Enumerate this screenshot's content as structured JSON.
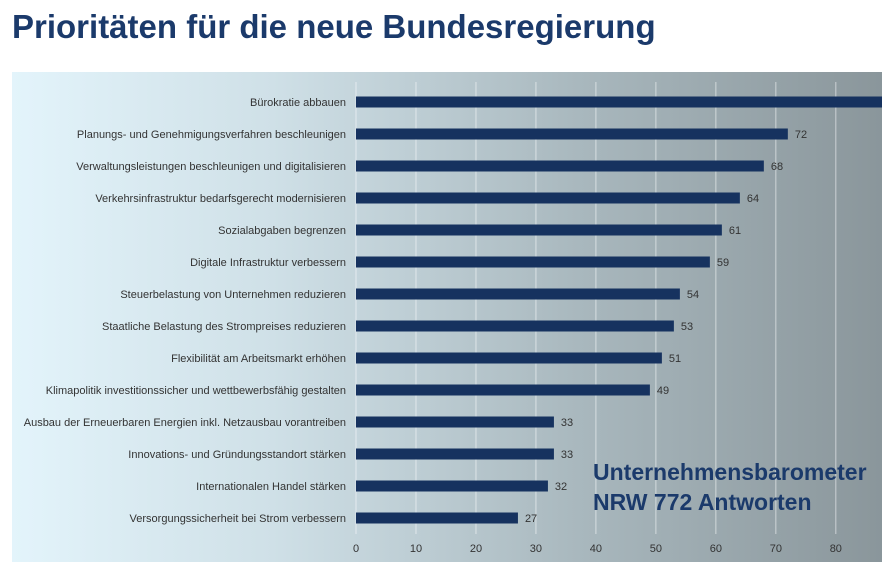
{
  "title": "Prioritäten für die neue Bundesregierung",
  "watermark": {
    "line1": "Unternehmensbarometer",
    "line2": "NRW 772 Antworten"
  },
  "colors": {
    "title": "#1b3a6b",
    "bar": "#16325f",
    "text": "#333333"
  },
  "chart_data": {
    "type": "bar",
    "orientation": "horizontal",
    "categories": [
      "Bürokratie abbauen",
      "Planungs- und Genehmigungsverfahren beschleunigen",
      "Verwaltungsleistungen beschleunigen und digitalisieren",
      "Verkehrsinfrastruktur bedarfsgerecht modernisieren",
      "Sozialabgaben begrenzen",
      "Digitale Infrastruktur verbessern",
      "Steuerbelastung von Unternehmen reduzieren",
      "Staatliche Belastung des Strompreises reduzieren",
      "Flexibilität am Arbeitsmarkt erhöhen",
      "Klimapolitik investitionssicher und wettbewerbsfähig gestalten",
      "Ausbau der Erneuerbaren Energien inkl. Netzausbau vorantreiben",
      "Innovations- und Gründungsstandort stärken",
      "Internationalen Handel stärken",
      "Versorgungssicherheit bei Strom verbessern"
    ],
    "values": [
      90,
      72,
      68,
      64,
      61,
      59,
      54,
      53,
      51,
      49,
      33,
      33,
      32,
      27
    ],
    "data_labels": [
      "",
      "72",
      "68",
      "64",
      "61",
      "59",
      "54",
      "53",
      "51",
      "49",
      "33",
      "33",
      "32",
      "27"
    ],
    "xticks": [
      "0",
      "10",
      "20",
      "30",
      "40",
      "50",
      "60",
      "70",
      "80"
    ],
    "xlim": [
      0,
      87.7
    ],
    "grid": true
  }
}
